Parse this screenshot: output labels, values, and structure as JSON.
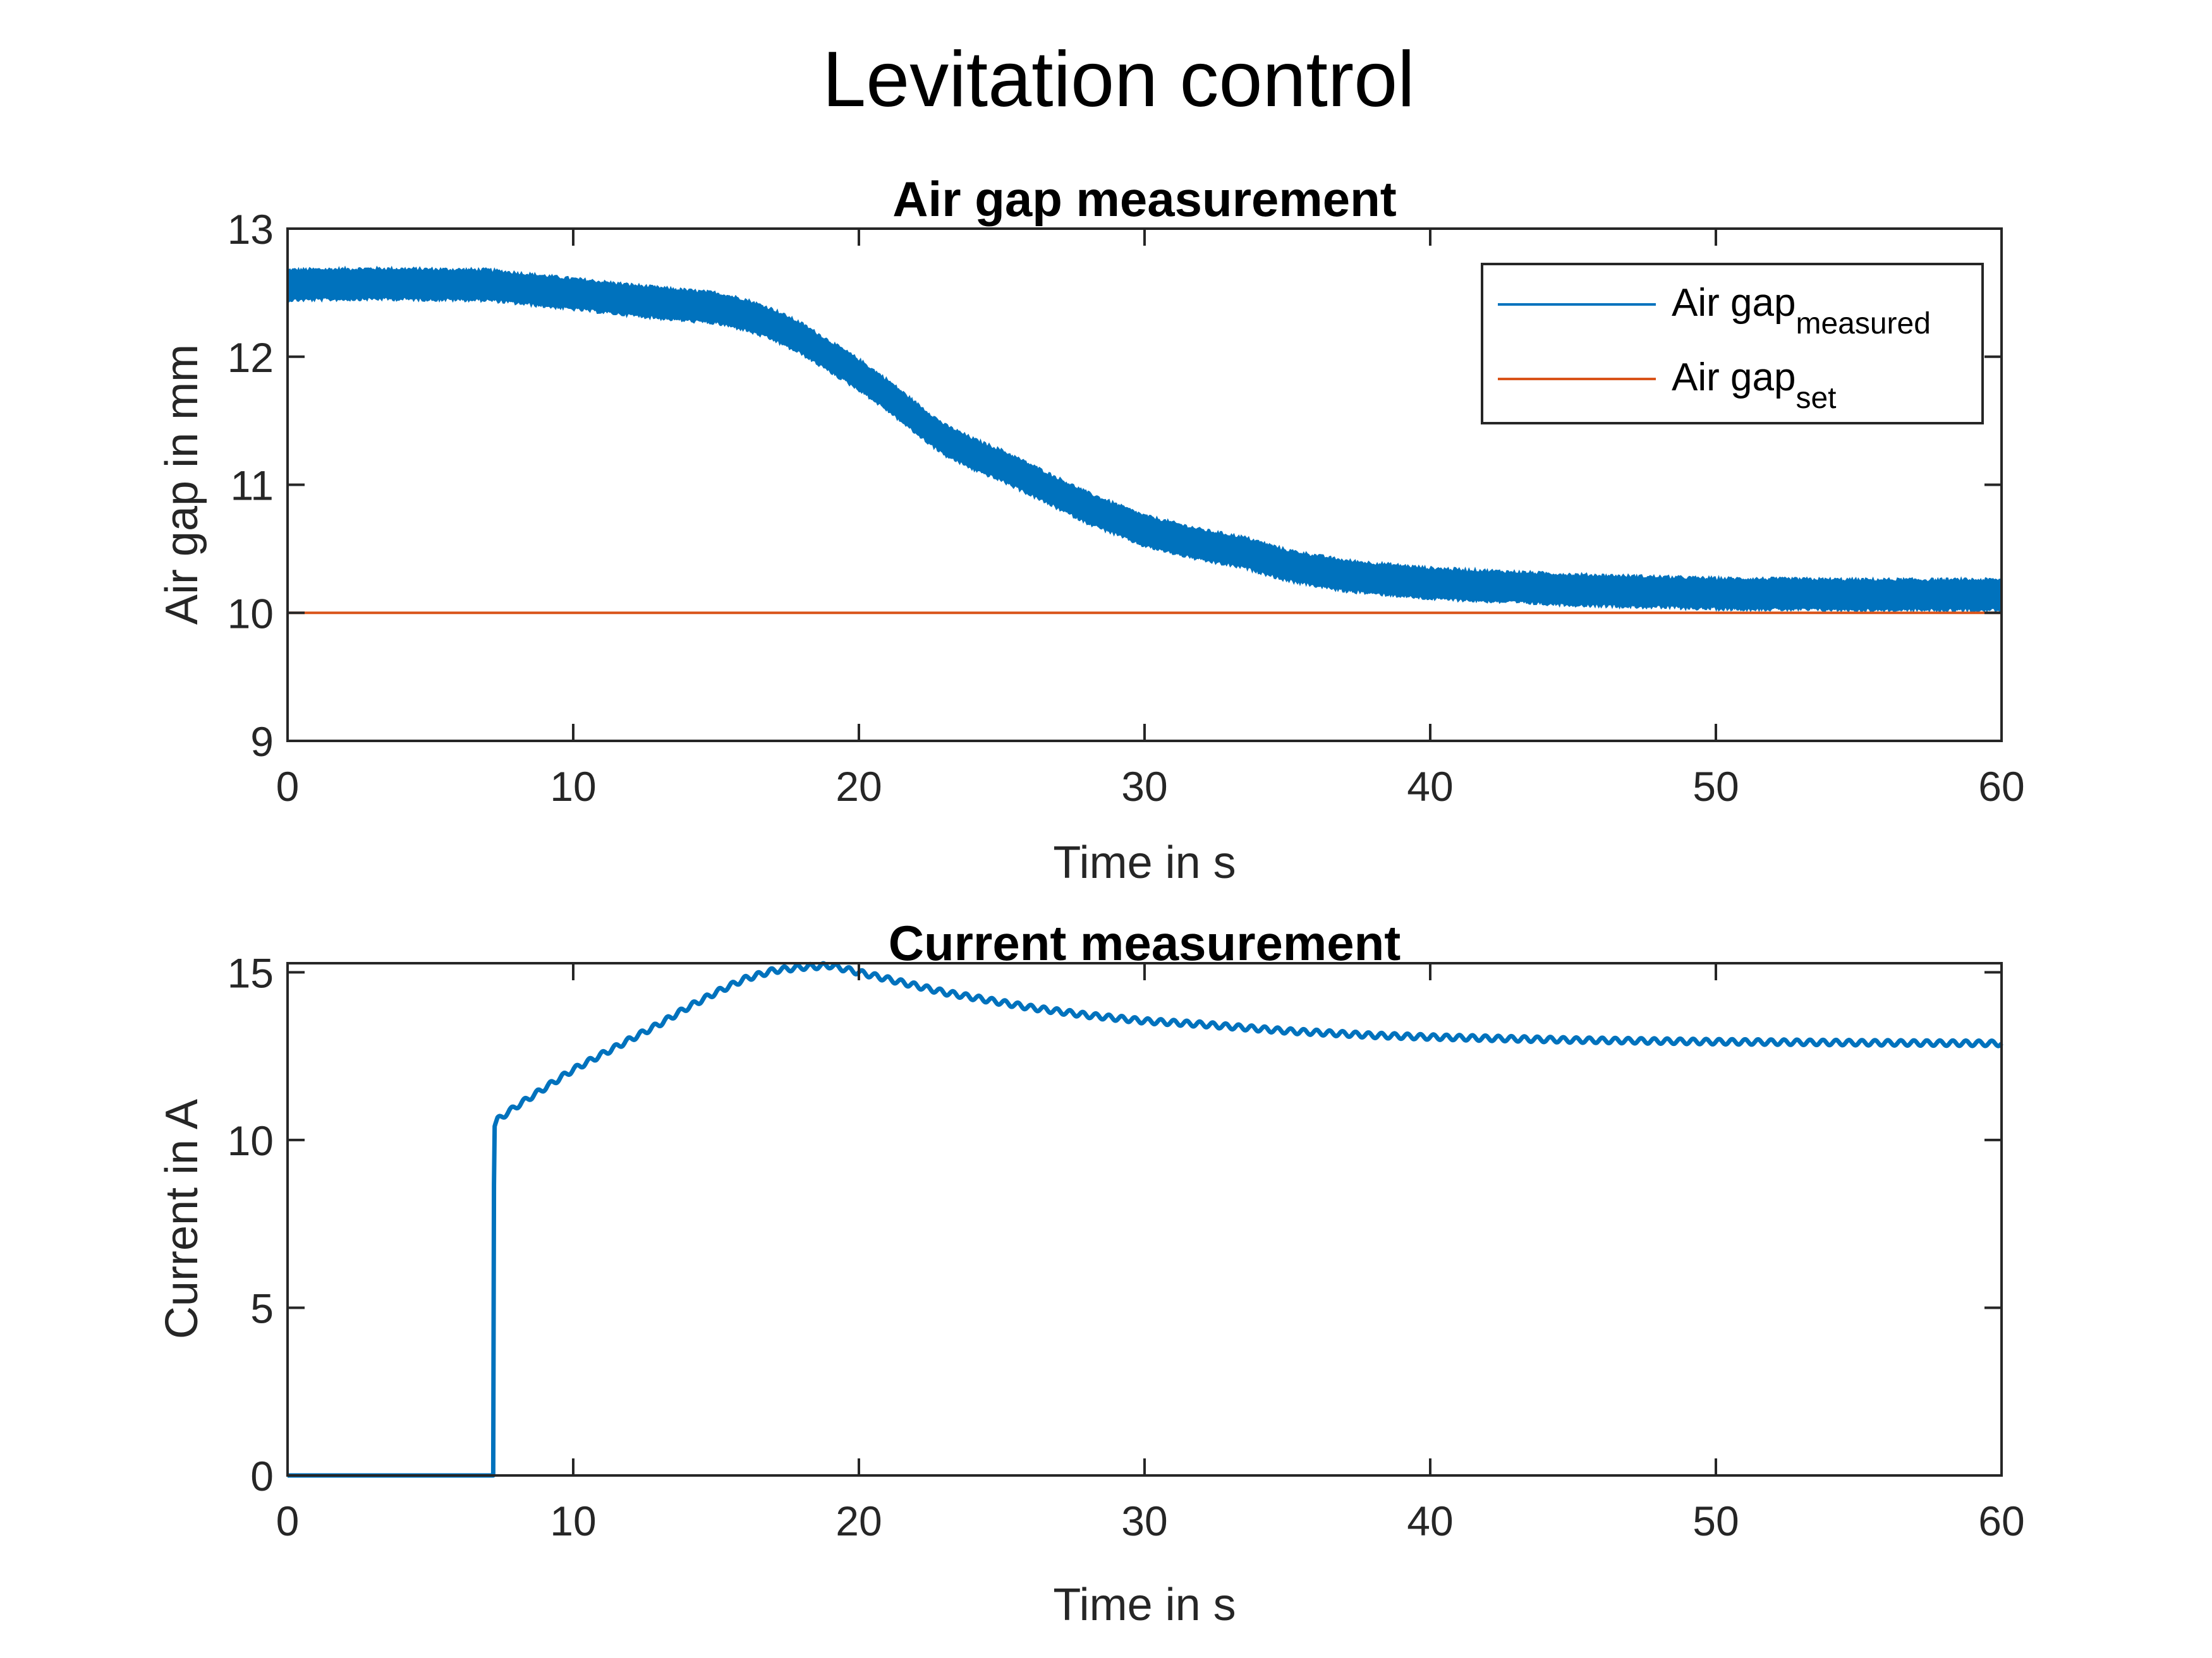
{
  "figure_title": "Levitation control",
  "chart_data": [
    {
      "type": "line",
      "title": "Air gap measurement",
      "xlabel": "Time in s",
      "ylabel": "Air gap in mm",
      "xlim": [
        0,
        60
      ],
      "ylim": [
        9,
        13
      ],
      "xticks": [
        0,
        10,
        20,
        30,
        40,
        50,
        60
      ],
      "xtick_labels": [
        "0",
        "10",
        "20",
        "30",
        "40",
        "50",
        "60"
      ],
      "yticks": [
        9,
        10,
        11,
        12,
        13
      ],
      "ytick_labels": [
        "9",
        "10",
        "11",
        "12",
        "13"
      ],
      "grid": false,
      "legend": {
        "placement": "top-right",
        "entries": [
          {
            "base": "Air gap",
            "subscript": "measured",
            "series": "measured"
          },
          {
            "base": "Air gap",
            "subscript": "set",
            "series": "set"
          }
        ]
      },
      "series": [
        {
          "name": "Air gap measured",
          "color": "#0072BD",
          "noise_band_mm": 0.12,
          "x": [
            0,
            3,
            7,
            10,
            13,
            15,
            16,
            17,
            18,
            19,
            20,
            21,
            22,
            23,
            24,
            25,
            26,
            27,
            28,
            30,
            32,
            33.5,
            35,
            37,
            40,
            43,
            45,
            50,
            55,
            60
          ],
          "y": [
            12.56,
            12.57,
            12.56,
            12.49,
            12.42,
            12.38,
            12.33,
            12.25,
            12.14,
            12.0,
            11.86,
            11.7,
            11.52,
            11.35,
            11.24,
            11.15,
            11.04,
            10.93,
            10.82,
            10.64,
            10.53,
            10.47,
            10.37,
            10.29,
            10.23,
            10.2,
            10.18,
            10.15,
            10.14,
            10.14
          ]
        },
        {
          "name": "Air gap set",
          "color": "#D95319",
          "x": [
            0,
            60
          ],
          "y": [
            10,
            10
          ]
        }
      ]
    },
    {
      "type": "line",
      "title": "Current measurement",
      "xlabel": "Time in s",
      "ylabel": "Current in A",
      "xlim": [
        0,
        60
      ],
      "ylim": [
        0,
        15.27
      ],
      "xticks": [
        0,
        10,
        20,
        30,
        40,
        50,
        60
      ],
      "xtick_labels": [
        "0",
        "10",
        "20",
        "30",
        "40",
        "50",
        "60"
      ],
      "yticks": [
        0,
        5,
        10,
        15
      ],
      "ytick_labels": [
        "0",
        "5",
        "10",
        "15"
      ],
      "grid": false,
      "series": [
        {
          "name": "Current",
          "color": "#0072BD",
          "ripple_A": 0.08,
          "x": [
            0,
            7.2,
            7.23,
            7.35,
            8,
            9,
            10,
            11,
            12,
            13,
            14,
            15,
            16,
            17,
            18,
            19,
            20,
            21,
            22,
            23,
            24,
            25,
            26,
            28,
            30,
            32,
            35,
            38,
            40,
            45,
            50,
            55,
            60
          ],
          "y": [
            0,
            0,
            10.4,
            10.6,
            11.0,
            11.55,
            12.1,
            12.55,
            13.0,
            13.45,
            13.95,
            14.4,
            14.8,
            15.05,
            15.15,
            15.2,
            15.0,
            14.8,
            14.6,
            14.4,
            14.25,
            14.1,
            13.95,
            13.72,
            13.55,
            13.45,
            13.25,
            13.12,
            13.07,
            12.98,
            12.93,
            12.9,
            12.88
          ]
        }
      ]
    }
  ]
}
